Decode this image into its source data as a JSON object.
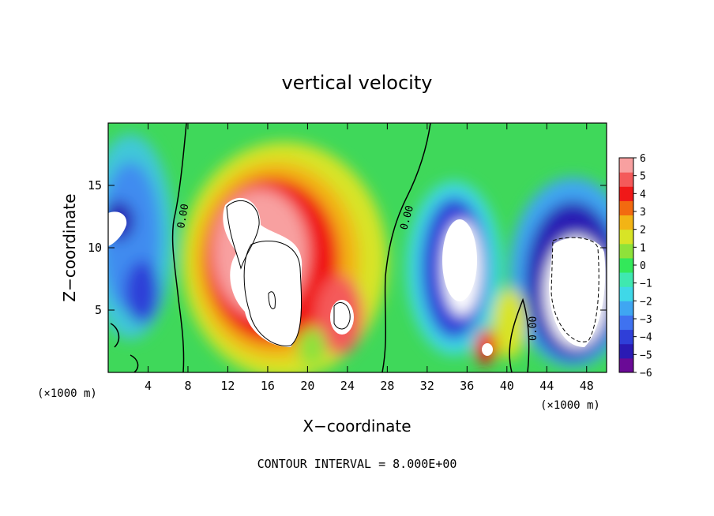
{
  "chart_data": {
    "type": "heatmap",
    "title": "vertical velocity",
    "xlabel": "X−coordinate",
    "ylabel": "Z−coordinate",
    "x_unit": "(×1000 m)",
    "x_ticks": [
      4,
      8,
      12,
      16,
      20,
      24,
      28,
      32,
      36,
      40,
      44,
      48
    ],
    "y_ticks": [
      5,
      10,
      15
    ],
    "xlim": [
      0,
      50
    ],
    "ylim": [
      0,
      20
    ],
    "colorbar": {
      "min": -6,
      "max": 6,
      "ticks": [
        6,
        5,
        4,
        3,
        2,
        1,
        0,
        -1,
        -2,
        -3,
        -4,
        -5,
        -6
      ],
      "colors": [
        "#6a0a96",
        "#2a1ab4",
        "#2f3fd8",
        "#3f72f0",
        "#3fa6f2",
        "#3fd8e8",
        "#3fe8b0",
        "#33e85a",
        "#8ee23a",
        "#d8e426",
        "#f2b415",
        "#f26a10",
        "#f01818",
        "#f45a5a",
        "#f8a0a0"
      ]
    },
    "contour_labels": [
      "0.00",
      "0.00",
      "0.00"
    ],
    "contour_interval_text": "CONTOUR INTERVAL = 8.000E+00"
  }
}
